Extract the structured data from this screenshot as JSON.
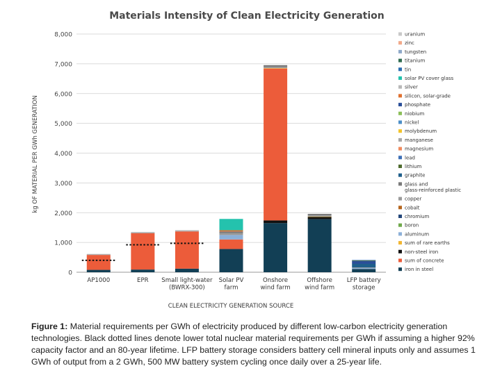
{
  "chart_data": {
    "type": "bar",
    "stacked": true,
    "title": "Materials Intensity of Clean Electricity Generation",
    "xlabel": "CLEAN ELECTRICITY GENERATION SOURCE",
    "ylabel": "kg OF MATERIAL PER GWh GENERATION",
    "ylim": [
      0,
      8000
    ],
    "yticks": [
      0,
      1000,
      2000,
      3000,
      4000,
      5000,
      6000,
      7000,
      8000
    ],
    "ytick_labels": [
      "0",
      "1,000",
      "2,000",
      "3,000",
      "4,000",
      "5,000",
      "6,000",
      "7,000",
      "8,000"
    ],
    "grid": "horizontal",
    "legend_position": "right",
    "categories": [
      [
        "AP1000"
      ],
      [
        "EPR"
      ],
      [
        "Small light-water",
        "(BWRX-300)"
      ],
      [
        "Solar PV",
        "farm"
      ],
      [
        "Onshore",
        "wind farm"
      ],
      [
        "Offshore",
        "wind farm"
      ],
      [
        "LFP battery",
        "storage"
      ]
    ],
    "legend": [
      {
        "label": [
          "uranium"
        ],
        "color": "#c8c8c8"
      },
      {
        "label": [
          "zinc"
        ],
        "color": "#f2a98a"
      },
      {
        "label": [
          "tungsten"
        ],
        "color": "#8fa9c9"
      },
      {
        "label": [
          "titanium"
        ],
        "color": "#2e6b4f"
      },
      {
        "label": [
          "tin"
        ],
        "color": "#2b6cb0"
      },
      {
        "label": [
          "solar PV cover glass"
        ],
        "color": "#24c2ad"
      },
      {
        "label": [
          "silver"
        ],
        "color": "#b8b8b8"
      },
      {
        "label": [
          "silicon, solar-grade"
        ],
        "color": "#e0702f"
      },
      {
        "label": [
          "phosphate"
        ],
        "color": "#2a4f99"
      },
      {
        "label": [
          "niobium"
        ],
        "color": "#8cbf5a"
      },
      {
        "label": [
          "nickel"
        ],
        "color": "#4c8fc7"
      },
      {
        "label": [
          "molybdenum"
        ],
        "color": "#f3c42b"
      },
      {
        "label": [
          "manganese"
        ],
        "color": "#a6a6a6"
      },
      {
        "label": [
          "magnesium"
        ],
        "color": "#f08a5d"
      },
      {
        "label": [
          "lead"
        ],
        "color": "#3d6fb6"
      },
      {
        "label": [
          "lithium"
        ],
        "color": "#4f6b2e"
      },
      {
        "label": [
          "graphite"
        ],
        "color": "#1f5f8b"
      },
      {
        "label": [
          "glass and",
          "glass-reinforced plastic"
        ],
        "color": "#7a7a7a"
      },
      {
        "label": [
          "copper"
        ],
        "color": "#9a9a9a"
      },
      {
        "label": [
          "cobalt"
        ],
        "color": "#b5651d"
      },
      {
        "label": [
          "chromium"
        ],
        "color": "#24477a"
      },
      {
        "label": [
          "boron"
        ],
        "color": "#6fa84a"
      },
      {
        "label": [
          "aluminum"
        ],
        "color": "#8cb0d8"
      },
      {
        "label": [
          "sum of rare earths"
        ],
        "color": "#f2b632"
      },
      {
        "label": [
          "non-steel iron"
        ],
        "color": "#111111"
      },
      {
        "label": [
          "sum of concrete"
        ],
        "color": "#ec5c3a"
      },
      {
        "label": [
          "iron in steel"
        ],
        "color": "#123f55"
      }
    ],
    "series": [
      {
        "name": "iron in steel",
        "color": "#123f55",
        "values": [
          80,
          90,
          120,
          780,
          1650,
          1780,
          110
        ]
      },
      {
        "name": "non-steel iron",
        "color": "#111111",
        "values": [
          0,
          0,
          0,
          0,
          90,
          80,
          0
        ]
      },
      {
        "name": "sum of concrete",
        "color": "#ec5c3a",
        "values": [
          500,
          1220,
          1250,
          320,
          5100,
          0,
          0
        ]
      },
      {
        "name": "sum of rare earths",
        "color": "#f2b632",
        "values": [
          0,
          0,
          0,
          0,
          15,
          10,
          0
        ]
      },
      {
        "name": "aluminum",
        "color": "#8cb0d8",
        "values": [
          0,
          0,
          0,
          150,
          0,
          0,
          30
        ]
      },
      {
        "name": "copper",
        "color": "#9a9a9a",
        "values": [
          15,
          20,
          20,
          60,
          40,
          40,
          20
        ]
      },
      {
        "name": "glass and glass-reinforced plastic",
        "color": "#7a7a7a",
        "values": [
          0,
          0,
          0,
          60,
          60,
          50,
          0
        ]
      },
      {
        "name": "graphite",
        "color": "#1f5f8b",
        "values": [
          0,
          0,
          0,
          0,
          0,
          0,
          120
        ]
      },
      {
        "name": "phosphate",
        "color": "#2a4f99",
        "values": [
          0,
          0,
          0,
          0,
          0,
          0,
          100
        ]
      },
      {
        "name": "lithium",
        "color": "#4f6b2e",
        "values": [
          0,
          0,
          0,
          0,
          0,
          0,
          20
        ]
      },
      {
        "name": "silicon, solar-grade",
        "color": "#e0702f",
        "values": [
          0,
          0,
          0,
          40,
          0,
          0,
          0
        ]
      },
      {
        "name": "solar PV cover glass",
        "color": "#24c2ad",
        "values": [
          0,
          0,
          0,
          380,
          0,
          0,
          0
        ]
      },
      {
        "name": "tin",
        "color": "#2b6cb0",
        "values": [
          0,
          0,
          0,
          0,
          0,
          0,
          10
        ]
      },
      {
        "name": "uranium",
        "color": "#c8c8c8",
        "values": [
          20,
          25,
          25,
          0,
          0,
          0,
          0
        ]
      }
    ],
    "lower_estimate_lines": [
      400,
      920,
      970,
      null,
      null,
      null,
      null
    ],
    "caption_label": "Figure 1:",
    "caption_text": "Material requirements per GWh of electricity produced by different low-carbon electricity generation technologies. Black dotted lines denote lower total nuclear material requirements per GWh if assuming a higher 92% capacity factor and an 80-year lifetime. LFP battery storage considers battery cell mineral inputs only and assumes 1 GWh of output from a 2 GWh, 500 MW battery system cycling once daily over a 25-year life."
  }
}
